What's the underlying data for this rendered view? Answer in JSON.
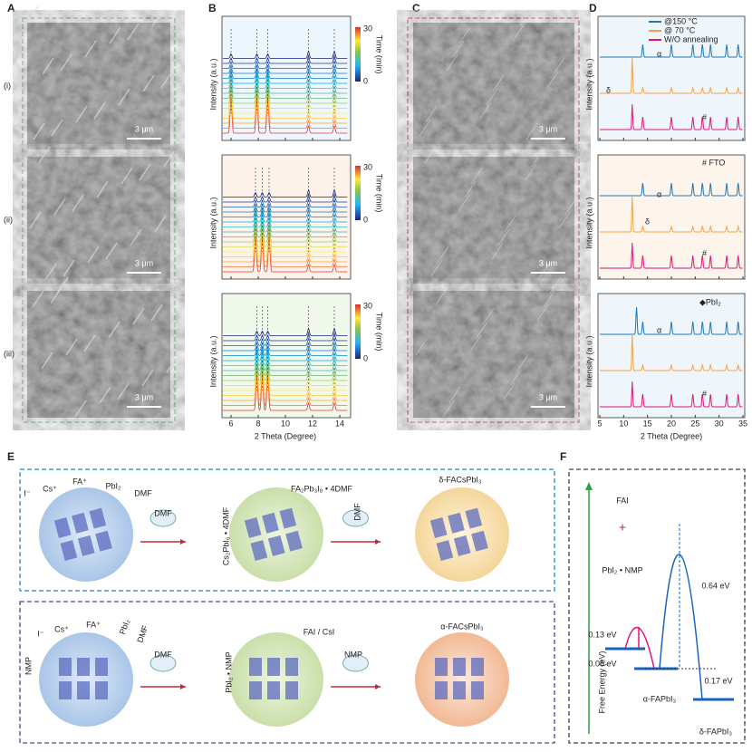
{
  "panels": {
    "A": {
      "label": "A",
      "rows": [
        "(i)",
        "(ii)",
        "(iii)"
      ],
      "scale": [
        "3 μm",
        "3 μm",
        "3 μm"
      ]
    },
    "B": {
      "label": "B",
      "ytitle": [
        "Intensity (a.u.)",
        "Intensity (a.u.)",
        "Intensity (a.u.)"
      ],
      "cbar_title": [
        "Time (min)",
        "Time (min)",
        "Time (min)"
      ],
      "cbar_max": [
        30,
        30,
        30
      ],
      "cbar_min": [
        0,
        0,
        0
      ],
      "xticks": [
        6,
        8,
        10,
        12,
        14
      ],
      "xtitle": "2 Theta (Degree)"
    },
    "C": {
      "label": "C",
      "scale": [
        "3 μm",
        "3 μm",
        "3 μm"
      ]
    },
    "D": {
      "label": "D",
      "legend": [
        "@150 °C",
        "@ 70 °C",
        "W/O annealing"
      ],
      "notes": [
        "# FTO",
        "◆PbI₂"
      ],
      "ytitle": [
        "Intensity (a.u.)",
        "Intensity (a.u.)",
        "Intensity (a.u.)"
      ],
      "xticks": [
        5,
        10,
        15,
        20,
        25,
        30,
        35
      ],
      "xtitle": "2 Theta (Degree)",
      "marks": [
        "α",
        "δ",
        "#",
        "α",
        "δ",
        "#",
        "α",
        "#"
      ]
    },
    "E": {
      "label": "E",
      "top": [
        "I⁻",
        "Cs⁺",
        "FA⁺",
        "PbI₂",
        "DMF",
        "DMF",
        "Cs₂PbI₆ • 4DMF",
        "FA₂Pb₃I₈ • 4DMF",
        "DMF",
        "δ-FACsPbI₃"
      ],
      "bottom": [
        "NMP",
        "I⁻",
        "Cs⁺",
        "FA⁺",
        "PbI₂",
        "DMF",
        "DMF",
        "PbI₂ • NMP",
        "FAI / CsI",
        "NMP",
        "α-FACsPbI₃"
      ]
    },
    "F": {
      "label": "F",
      "texts": [
        "FAI",
        "PbI₂ • NMP",
        "Free Energy (eV)",
        "0.13 eV",
        "0.06 eV",
        "0.64 eV",
        "0.17 eV",
        "α-FAPbI₃",
        "δ-FAPbI₃"
      ]
    }
  }
}
